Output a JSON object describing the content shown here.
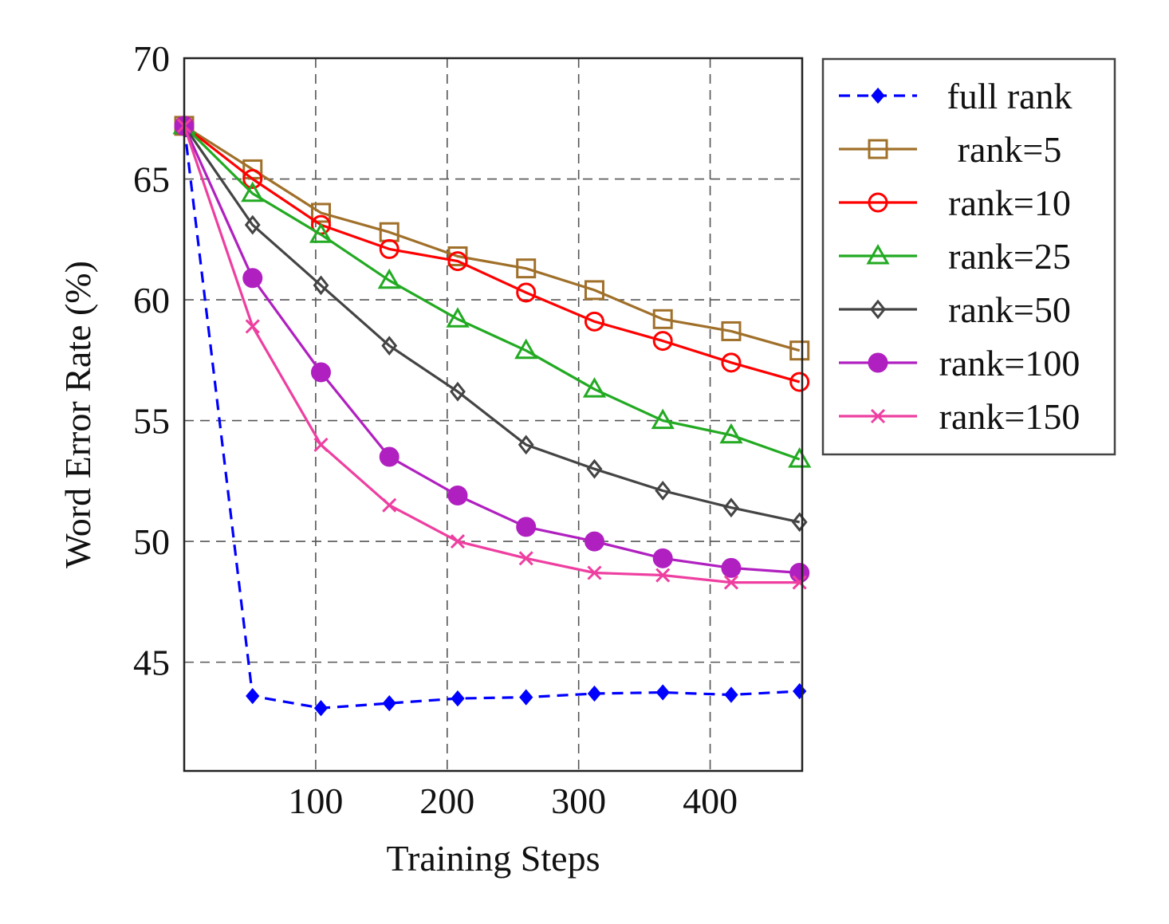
{
  "chart_data": {
    "type": "line",
    "xlabel": "Training Steps",
    "ylabel": "Word Error Rate (%)",
    "xlim": [
      0,
      470
    ],
    "ylim": [
      40.5,
      70
    ],
    "xticks": [
      100,
      200,
      300,
      400
    ],
    "xtick_labels": [
      "100",
      "200",
      "300",
      "400"
    ],
    "yticks": [
      45,
      50,
      55,
      60,
      65,
      70
    ],
    "ytick_labels": [
      "45",
      "50",
      "55",
      "60",
      "65",
      "70"
    ],
    "grid": "dashed",
    "legend_position": "outside-right-top",
    "x": [
      0,
      52,
      104,
      156,
      208,
      260,
      312,
      364,
      416,
      468
    ],
    "series": [
      {
        "name": "full rank",
        "color": "#0000ff",
        "marker": "diamond-filled",
        "line": "dashed",
        "values": [
          67.2,
          43.6,
          43.1,
          43.3,
          43.5,
          43.55,
          43.7,
          43.75,
          43.65,
          43.8
        ]
      },
      {
        "name": "rank=5",
        "color": "#a0702a",
        "marker": "square-open",
        "line": "solid",
        "values": [
          67.2,
          65.4,
          63.6,
          62.8,
          61.8,
          61.3,
          60.4,
          59.2,
          58.7,
          57.9
        ]
      },
      {
        "name": "rank=10",
        "color": "#ff0000",
        "marker": "circle-open",
        "line": "solid",
        "values": [
          67.2,
          65.0,
          63.1,
          62.1,
          61.6,
          60.3,
          59.1,
          58.3,
          57.4,
          56.6
        ]
      },
      {
        "name": "rank=25",
        "color": "#22aa22",
        "marker": "triangle-open",
        "line": "solid",
        "values": [
          67.2,
          64.4,
          62.7,
          60.8,
          59.2,
          57.9,
          56.3,
          55.0,
          54.4,
          53.4
        ]
      },
      {
        "name": "rank=50",
        "color": "#444444",
        "marker": "diamond-open",
        "line": "solid",
        "values": [
          67.2,
          63.1,
          60.6,
          58.1,
          56.2,
          54.0,
          53.0,
          52.1,
          51.4,
          50.8
        ]
      },
      {
        "name": "rank=100",
        "color": "#b020c0",
        "marker": "circle-filled",
        "line": "solid",
        "values": [
          67.2,
          60.9,
          57.0,
          53.5,
          51.9,
          50.6,
          50.0,
          49.3,
          48.9,
          48.7
        ]
      },
      {
        "name": "rank=150",
        "color": "#ee3fa0",
        "marker": "x",
        "line": "solid",
        "values": [
          67.2,
          58.9,
          54.0,
          51.5,
          50.0,
          49.3,
          48.7,
          48.6,
          48.3,
          48.3
        ]
      }
    ]
  }
}
